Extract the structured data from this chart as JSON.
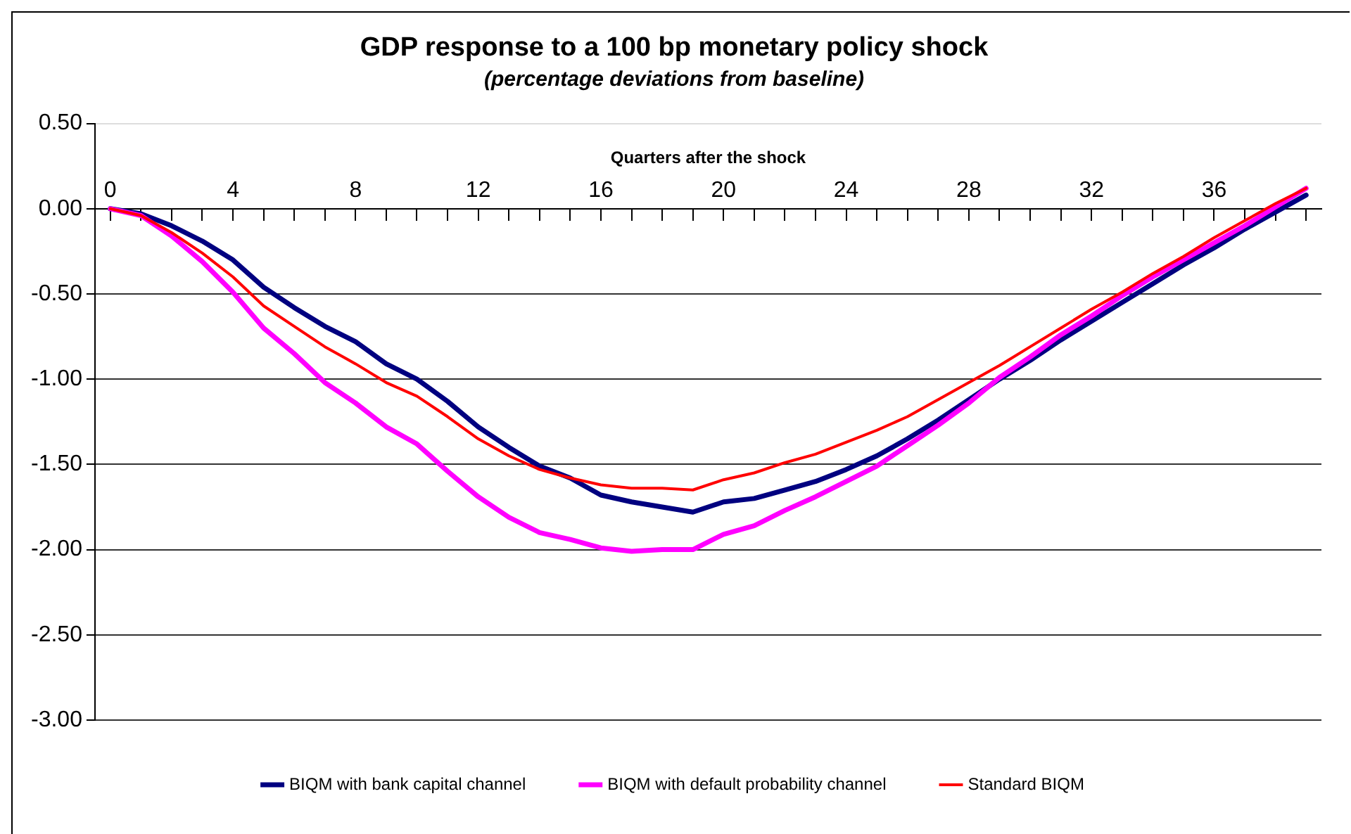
{
  "chart_data": {
    "type": "line",
    "title": "GDP response to a 100 bp monetary policy shock",
    "subtitle": "(percentage deviations from baseline)",
    "xlabel": "Quarters after the shock",
    "x": [
      0,
      1,
      2,
      3,
      4,
      5,
      6,
      7,
      8,
      9,
      10,
      11,
      12,
      13,
      14,
      15,
      16,
      17,
      18,
      19,
      20,
      21,
      22,
      23,
      24,
      25,
      26,
      27,
      28,
      29,
      30,
      31,
      32,
      33,
      34,
      35,
      36,
      37,
      38,
      39
    ],
    "series": [
      {
        "name": "BIQM with bank capital channel",
        "color": "#000080",
        "values": [
          0,
          -0.03,
          -0.1,
          -0.19,
          -0.3,
          -0.46,
          -0.58,
          -0.69,
          -0.78,
          -0.91,
          -1.0,
          -1.13,
          -1.28,
          -1.4,
          -1.51,
          -1.58,
          -1.68,
          -1.72,
          -1.75,
          -1.78,
          -1.72,
          -1.7,
          -1.65,
          -1.6,
          -1.53,
          -1.45,
          -1.35,
          -1.24,
          -1.12,
          -1.0,
          -0.89,
          -0.77,
          -0.66,
          -0.55,
          -0.44,
          -0.33,
          -0.23,
          -0.12,
          -0.02,
          0.08
        ]
      },
      {
        "name": "BIQM with default probability channel",
        "color": "#ff00ff",
        "values": [
          0,
          -0.04,
          -0.16,
          -0.31,
          -0.49,
          -0.7,
          -0.85,
          -1.02,
          -1.14,
          -1.28,
          -1.38,
          -1.54,
          -1.69,
          -1.81,
          -1.9,
          -1.94,
          -1.99,
          -2.01,
          -2.0,
          -2.0,
          -1.91,
          -1.86,
          -1.77,
          -1.69,
          -1.6,
          -1.51,
          -1.39,
          -1.27,
          -1.14,
          -0.99,
          -0.87,
          -0.74,
          -0.63,
          -0.51,
          -0.4,
          -0.3,
          -0.2,
          -0.1,
          0.01,
          0.12
        ]
      },
      {
        "name": "Standard BIQM",
        "color": "#ff0000",
        "values": [
          0,
          -0.04,
          -0.14,
          -0.26,
          -0.4,
          -0.57,
          -0.69,
          -0.81,
          -0.91,
          -1.02,
          -1.1,
          -1.22,
          -1.35,
          -1.45,
          -1.53,
          -1.58,
          -1.62,
          -1.64,
          -1.64,
          -1.65,
          -1.59,
          -1.55,
          -1.49,
          -1.44,
          -1.37,
          -1.3,
          -1.22,
          -1.12,
          -1.02,
          -0.92,
          -0.81,
          -0.7,
          -0.59,
          -0.49,
          -0.38,
          -0.28,
          -0.17,
          -0.07,
          0.03,
          0.12
        ]
      }
    ],
    "xlim": [
      -0.5,
      39.5
    ],
    "xticks": [
      0,
      {
        "value": 1,
        "label": null
      },
      {
        "value": 2,
        "label": null
      },
      {
        "value": 3,
        "label": null
      },
      4,
      {
        "value": 5,
        "label": null
      },
      {
        "value": 6,
        "label": null
      },
      {
        "value": 7,
        "label": null
      },
      8,
      {
        "value": 9,
        "label": null
      },
      {
        "value": 10,
        "label": null
      },
      {
        "value": 11,
        "label": null
      },
      12,
      {
        "value": 13,
        "label": null
      },
      {
        "value": 14,
        "label": null
      },
      {
        "value": 15,
        "label": null
      },
      16,
      {
        "value": 17,
        "label": null
      },
      {
        "value": 18,
        "label": null
      },
      {
        "value": 19,
        "label": null
      },
      20,
      {
        "value": 21,
        "label": null
      },
      {
        "value": 22,
        "label": null
      },
      {
        "value": 23,
        "label": null
      },
      24,
      {
        "value": 25,
        "label": null
      },
      {
        "value": 26,
        "label": null
      },
      {
        "value": 27,
        "label": null
      },
      28,
      {
        "value": 29,
        "label": null
      },
      {
        "value": 30,
        "label": null
      },
      {
        "value": 31,
        "label": null
      },
      32,
      {
        "value": 33,
        "label": null
      },
      {
        "value": 34,
        "label": null
      },
      {
        "value": 35,
        "label": null
      },
      36,
      {
        "value": 37,
        "label": null
      },
      {
        "value": 38,
        "label": null
      },
      {
        "value": 39,
        "label": null
      }
    ],
    "ylim": [
      -3,
      0.5
    ],
    "yticks": [
      {
        "value": 0.5,
        "label": "0.50"
      },
      {
        "value": 0,
        "label": "0.00"
      },
      {
        "value": -0.5,
        "label": "-0.50"
      },
      {
        "value": -1,
        "label": "-1.00"
      },
      {
        "value": -1.5,
        "label": "-1.50"
      },
      {
        "value": -2,
        "label": "-2.00"
      },
      {
        "value": -2.5,
        "label": "-2.50"
      },
      {
        "value": -3,
        "label": "-3.00"
      }
    ],
    "grid": "y",
    "legend": "bottom",
    "marker": "none",
    "line_style": "solid"
  }
}
